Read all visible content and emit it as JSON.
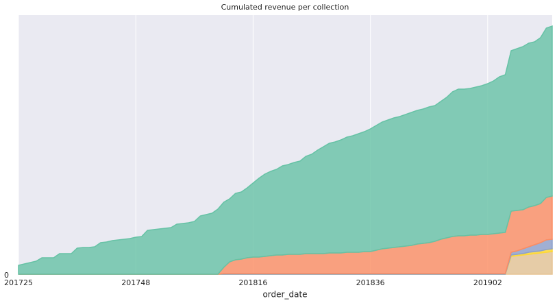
{
  "chart_data": {
    "type": "stacked_area",
    "title": "Cumulated revenue per collection",
    "xlabel": "order_date",
    "categories": [
      "201725",
      null,
      null,
      null,
      null,
      null,
      null,
      null,
      null,
      null,
      null,
      null,
      null,
      null,
      null,
      null,
      null,
      null,
      null,
      null,
      "201748",
      null,
      null,
      null,
      null,
      null,
      null,
      null,
      null,
      null,
      null,
      null,
      null,
      null,
      null,
      null,
      null,
      null,
      null,
      null,
      "201816",
      null,
      null,
      null,
      null,
      null,
      null,
      null,
      null,
      null,
      null,
      null,
      null,
      null,
      null,
      null,
      null,
      null,
      null,
      null,
      "201836",
      null,
      null,
      null,
      null,
      null,
      null,
      null,
      null,
      null,
      null,
      null,
      null,
      null,
      null,
      null,
      null,
      null,
      null,
      null,
      "201902",
      null,
      null,
      null,
      null,
      null,
      null,
      null,
      null,
      null,
      null,
      null
    ],
    "ylim": [
      0,
      378
    ],
    "yticks": [
      0
    ],
    "grid": "x",
    "series": [
      {
        "color": "#e5c494",
        "values": [
          0,
          0,
          0,
          0,
          0,
          0,
          0,
          0,
          0,
          0,
          0,
          0,
          0,
          0,
          0,
          0,
          0,
          0,
          0,
          0,
          0,
          0,
          0,
          0,
          0,
          0,
          0,
          0,
          0,
          0,
          0,
          0,
          0,
          0,
          0,
          0,
          0,
          0,
          0,
          0,
          0,
          0,
          0,
          0,
          0,
          0,
          0,
          0,
          0,
          0,
          0,
          0,
          0,
          0,
          0,
          0,
          0,
          0,
          0,
          0,
          0,
          0,
          0,
          0,
          0,
          0,
          0,
          0,
          0,
          0,
          0,
          0,
          0,
          0,
          0,
          0,
          0,
          0,
          0,
          0,
          0,
          0,
          0,
          0,
          26,
          27,
          28,
          29,
          30,
          31,
          32,
          33
        ]
      },
      {
        "color": "#ffd92f",
        "values": [
          0,
          0,
          0,
          0,
          0,
          0,
          0,
          0,
          0,
          0,
          0,
          0,
          0,
          0,
          0,
          0,
          0,
          0,
          0,
          0,
          0,
          0,
          0,
          0,
          0,
          0,
          0,
          0,
          0,
          0,
          0,
          0,
          0,
          0,
          0,
          0,
          0,
          0,
          0,
          0,
          0,
          0,
          0,
          0,
          0,
          0,
          0,
          0,
          0,
          0,
          0,
          0,
          0,
          0,
          0,
          0,
          0,
          0,
          0,
          0,
          0,
          0,
          0,
          0,
          0,
          0,
          0,
          0,
          0,
          0,
          0,
          0,
          0,
          0,
          0,
          0,
          0,
          0,
          0,
          0,
          0,
          0,
          0,
          0,
          2,
          2,
          2,
          3,
          3,
          3,
          4,
          4
        ]
      },
      {
        "color": "#8da0cb",
        "values": [
          0,
          0,
          0,
          0,
          0,
          0,
          0,
          0,
          0,
          0,
          0,
          0,
          0,
          0,
          0,
          0,
          0,
          0,
          0,
          0,
          0,
          0,
          0,
          0,
          0,
          0,
          0,
          0,
          0,
          0,
          0,
          0,
          0,
          0,
          0,
          1,
          1,
          1,
          1,
          1,
          1,
          1,
          1,
          1,
          1,
          1,
          1,
          1,
          1,
          1,
          1,
          1,
          1,
          1,
          1,
          1,
          1,
          1,
          1,
          1,
          1,
          1,
          1,
          1,
          1,
          1,
          1,
          1,
          1,
          1,
          1,
          1,
          1,
          1,
          1,
          1,
          1,
          1,
          1,
          1,
          1,
          1,
          1,
          1,
          4,
          5,
          7,
          8,
          10,
          12,
          14,
          14
        ]
      },
      {
        "color": "#fc8d62",
        "values": [
          0,
          0,
          0,
          0,
          0,
          0,
          0,
          0,
          0,
          0,
          0,
          0,
          0,
          0,
          0,
          0,
          0,
          0,
          0,
          0,
          0,
          0,
          0,
          0,
          0,
          0,
          0,
          0,
          0,
          0,
          0,
          0,
          0,
          0,
          0,
          9,
          17,
          20,
          21,
          23,
          24,
          24,
          25,
          26,
          27,
          27,
          28,
          28,
          28,
          29,
          29,
          29,
          29,
          30,
          30,
          30,
          31,
          31,
          31,
          32,
          32,
          34,
          36,
          37,
          38,
          39,
          40,
          41,
          43,
          44,
          45,
          47,
          50,
          52,
          54,
          55,
          55,
          56,
          56,
          57,
          57,
          58,
          59,
          60,
          60,
          59,
          57,
          58,
          57,
          57,
          62,
          63
        ]
      },
      {
        "color": "#66c2a5",
        "values": [
          13,
          15,
          17,
          19,
          24,
          24,
          24,
          30,
          30,
          30,
          38,
          39,
          39,
          40,
          46,
          47,
          49,
          50,
          51,
          52,
          54,
          55,
          64,
          65,
          66,
          67,
          68,
          73,
          74,
          75,
          77,
          85,
          87,
          89,
          95,
          95,
          92,
          97,
          98,
          102,
          108,
          115,
          120,
          123,
          125,
          130,
          131,
          134,
          136,
          142,
          145,
          151,
          156,
          160,
          162,
          165,
          168,
          170,
          173,
          175,
          179,
          182,
          185,
          187,
          189,
          190,
          192,
          194,
          195,
          196,
          198,
          198,
          201,
          205,
          211,
          214,
          214,
          214,
          216,
          217,
          220,
          223,
          228,
          230,
          234,
          236,
          238,
          239,
          239,
          242,
          247,
          248
        ]
      }
    ]
  }
}
